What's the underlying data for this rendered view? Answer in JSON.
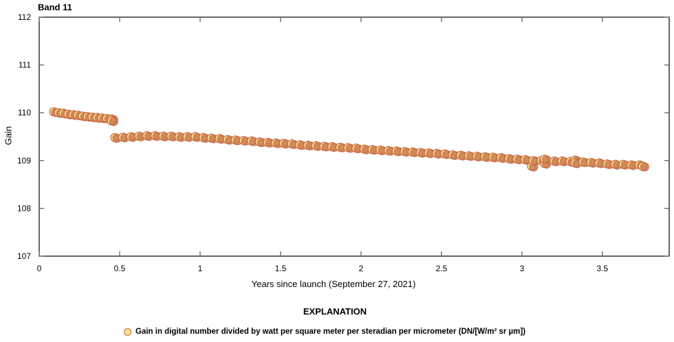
{
  "chart_data": {
    "type": "scatter",
    "title": "Band 11",
    "xlabel": "Years since launch (September 27, 2021)",
    "ylabel": "Gain",
    "xlim": [
      0,
      3.915
    ],
    "ylim": [
      107,
      112
    ],
    "xticks": [
      "0",
      "0.5",
      "1",
      "1.5",
      "2",
      "2.5",
      "3",
      "3.5"
    ],
    "yticks": [
      "107",
      "108",
      "109",
      "110",
      "111",
      "112"
    ],
    "grid": false,
    "legend_title": "EXPLANATION",
    "legend_position": "bottom",
    "series": [
      {
        "name": "Gain in digital number divided by watt per square meter per steradian per micrometer (DN/[W/m² sr µm])",
        "marker_fill": "#FBE08E",
        "marker_stroke": "#C66E47",
        "points": [
          [
            0.09,
            110.02
          ],
          [
            0.12,
            110.0
          ],
          [
            0.15,
            109.99
          ],
          [
            0.18,
            109.97
          ],
          [
            0.21,
            109.96
          ],
          [
            0.24,
            109.95
          ],
          [
            0.27,
            109.93
          ],
          [
            0.3,
            109.92
          ],
          [
            0.33,
            109.91
          ],
          [
            0.36,
            109.9
          ],
          [
            0.39,
            109.89
          ],
          [
            0.42,
            109.88
          ],
          [
            0.45,
            109.87
          ],
          [
            0.45,
            109.83
          ],
          [
            0.47,
            109.48
          ],
          [
            0.52,
            109.49
          ],
          [
            0.57,
            109.5
          ],
          [
            0.62,
            109.51
          ],
          [
            0.67,
            109.52
          ],
          [
            0.72,
            109.52
          ],
          [
            0.77,
            109.51
          ],
          [
            0.82,
            109.51
          ],
          [
            0.87,
            109.5
          ],
          [
            0.92,
            109.5
          ],
          [
            0.97,
            109.5
          ],
          [
            1.02,
            109.48
          ],
          [
            1.07,
            109.47
          ],
          [
            1.12,
            109.46
          ],
          [
            1.17,
            109.44
          ],
          [
            1.22,
            109.43
          ],
          [
            1.27,
            109.42
          ],
          [
            1.32,
            109.41
          ],
          [
            1.37,
            109.39
          ],
          [
            1.42,
            109.38
          ],
          [
            1.47,
            109.37
          ],
          [
            1.52,
            109.36
          ],
          [
            1.57,
            109.35
          ],
          [
            1.62,
            109.33
          ],
          [
            1.67,
            109.32
          ],
          [
            1.72,
            109.31
          ],
          [
            1.77,
            109.3
          ],
          [
            1.82,
            109.29
          ],
          [
            1.87,
            109.28
          ],
          [
            1.92,
            109.27
          ],
          [
            1.97,
            109.26
          ],
          [
            2.02,
            109.24
          ],
          [
            2.07,
            109.23
          ],
          [
            2.12,
            109.22
          ],
          [
            2.17,
            109.21
          ],
          [
            2.22,
            109.2
          ],
          [
            2.27,
            109.19
          ],
          [
            2.32,
            109.18
          ],
          [
            2.37,
            109.17
          ],
          [
            2.42,
            109.16
          ],
          [
            2.47,
            109.15
          ],
          [
            2.52,
            109.14
          ],
          [
            2.57,
            109.12
          ],
          [
            2.62,
            109.11
          ],
          [
            2.67,
            109.1
          ],
          [
            2.72,
            109.09
          ],
          [
            2.77,
            109.08
          ],
          [
            2.82,
            109.07
          ],
          [
            2.87,
            109.06
          ],
          [
            2.92,
            109.04
          ],
          [
            2.97,
            109.03
          ],
          [
            3.02,
            109.02
          ],
          [
            3.06,
            108.88
          ],
          [
            3.07,
            109.0
          ],
          [
            3.12,
            109.0
          ],
          [
            3.14,
            108.94
          ],
          [
            3.14,
            109.03
          ],
          [
            3.2,
            108.99
          ],
          [
            3.25,
            108.99
          ],
          [
            3.3,
            108.98
          ],
          [
            3.33,
            109.01
          ],
          [
            3.33,
            108.95
          ],
          [
            3.38,
            108.97
          ],
          [
            3.43,
            108.96
          ],
          [
            3.48,
            108.95
          ],
          [
            3.53,
            108.93
          ],
          [
            3.58,
            108.92
          ],
          [
            3.63,
            108.92
          ],
          [
            3.68,
            108.91
          ],
          [
            3.73,
            108.91
          ],
          [
            3.75,
            108.88
          ]
        ]
      }
    ]
  }
}
